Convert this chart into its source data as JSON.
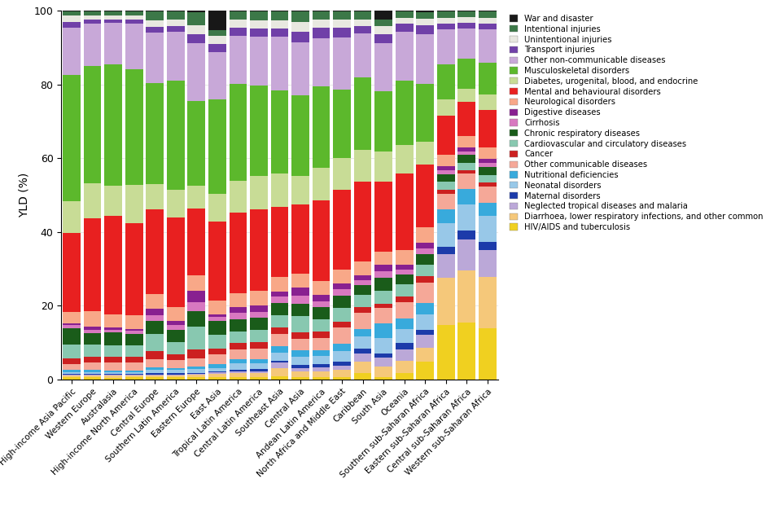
{
  "categories": [
    "High-income Asia Pacific",
    "Western Europe",
    "Australasia",
    "High-income North America",
    "Central Europe",
    "Southern Latin America",
    "Eastern Europe",
    "East Asia",
    "Tropical Latin America",
    "Central Latin America",
    "Southeast Asia",
    "Central Asia",
    "Andean Latin America",
    "North Africa and Middle East",
    "Caribbean",
    "South Asia",
    "Oceania",
    "Southern sub-Saharan Africa",
    "Eastern sub-Saharan Africa",
    "Central sub-Saharan Africa",
    "Western sub-Saharan Africa"
  ],
  "legend_labels": [
    "HIV/AIDS and tuberculosis",
    "Diarrhoea, lower respiratory infections, and other common infectious diseases",
    "Neglected tropical diseases and malaria",
    "Maternal disorders",
    "Neonatal disorders",
    "Nutritional deficiencies",
    "Other communicable diseases",
    "Cancer",
    "Cardiovascular and circulatory diseases",
    "Chronic respiratory diseases",
    "Cirrhosis",
    "Digestive diseases",
    "Neurological disorders",
    "Mental and behavioural disorders",
    "Diabetes, urogenital, blood, and endocrine",
    "Musculoskeletal disorders",
    "Other non-communicable diseases",
    "Transport injuries",
    "Unintentional injuries",
    "Intentional injuries",
    "War and disaster"
  ],
  "colors": [
    "#F0D020",
    "#F5C87A",
    "#BBA8D8",
    "#1C3BAA",
    "#98C8E8",
    "#38AADC",
    "#F5A898",
    "#CC2020",
    "#88C8B0",
    "#1A5C1A",
    "#D878C0",
    "#882090",
    "#F8A888",
    "#E82020",
    "#C8DC96",
    "#5CB82C",
    "#C8A8D8",
    "#7040A8",
    "#E8E8E0",
    "#3C7848",
    "#181818"
  ],
  "raw_data": {
    "HIV/AIDS and tuberculosis": [
      0.5,
      0.5,
      0.5,
      0.5,
      0.5,
      0.5,
      0.5,
      0.5,
      0.5,
      0.5,
      0.8,
      0.5,
      0.5,
      0.5,
      1.5,
      0.5,
      1.5,
      4.0,
      14.0,
      15.0,
      13.0
    ],
    "Diarrhoea, lower respiratory infections, and other common infectious diseases": [
      0.5,
      0.5,
      0.5,
      0.5,
      0.5,
      0.5,
      0.5,
      1.0,
      1.0,
      1.0,
      2.0,
      1.5,
      1.5,
      2.0,
      3.0,
      2.5,
      3.0,
      3.0,
      12.0,
      14.0,
      13.0
    ],
    "Neglected tropical diseases and malaria": [
      0.2,
      0.2,
      0.2,
      0.2,
      0.2,
      0.2,
      0.2,
      0.3,
      0.5,
      0.5,
      1.2,
      0.8,
      1.0,
      1.0,
      2.0,
      2.0,
      3.0,
      3.0,
      6.0,
      8.0,
      7.0
    ],
    "Maternal disorders": [
      0.2,
      0.2,
      0.2,
      0.2,
      0.3,
      0.3,
      0.3,
      0.2,
      0.5,
      0.5,
      0.5,
      0.8,
      0.8,
      1.0,
      1.2,
      1.0,
      1.5,
      1.0,
      2.0,
      2.5,
      2.0
    ],
    "Neonatal disorders": [
      0.5,
      0.5,
      0.5,
      0.5,
      0.8,
      0.8,
      0.8,
      0.8,
      1.5,
      1.5,
      2.0,
      2.0,
      2.0,
      2.5,
      3.0,
      3.5,
      3.5,
      3.5,
      6.0,
      7.0,
      6.5
    ],
    "Nutritional deficiencies": [
      0.5,
      0.5,
      0.5,
      0.5,
      0.5,
      0.5,
      0.5,
      1.0,
      1.0,
      1.0,
      1.5,
      1.5,
      1.5,
      2.0,
      2.0,
      3.5,
      2.5,
      2.5,
      3.5,
      4.0,
      3.5
    ],
    "Other communicable diseases": [
      1.5,
      2.0,
      2.0,
      2.0,
      2.0,
      2.0,
      2.0,
      2.5,
      2.5,
      2.5,
      3.0,
      3.0,
      3.0,
      4.0,
      4.0,
      3.5,
      4.0,
      4.5,
      4.0,
      4.0,
      4.0
    ],
    "Cancer": [
      1.5,
      1.5,
      1.5,
      1.5,
      2.0,
      1.5,
      2.0,
      1.5,
      1.5,
      1.5,
      1.5,
      1.5,
      1.5,
      1.5,
      1.5,
      1.0,
      1.5,
      1.5,
      1.0,
      1.0,
      1.0
    ],
    "Cardiovascular and circulatory diseases": [
      3.5,
      3.0,
      3.0,
      3.0,
      4.0,
      3.0,
      5.0,
      3.5,
      3.0,
      3.0,
      3.0,
      4.0,
      3.0,
      3.5,
      3.0,
      3.0,
      3.0,
      2.5,
      2.0,
      2.0,
      2.0
    ],
    "Chronic respiratory diseases": [
      4.0,
      3.0,
      3.5,
      3.0,
      3.0,
      3.0,
      3.5,
      3.5,
      3.0,
      3.0,
      3.0,
      3.0,
      3.0,
      3.0,
      2.5,
      3.0,
      2.5,
      2.5,
      2.0,
      2.0,
      2.0
    ],
    "Cirrhosis": [
      0.8,
      0.8,
      0.8,
      0.8,
      1.5,
      1.2,
      2.0,
      1.0,
      1.5,
      1.5,
      1.5,
      2.0,
      1.5,
      1.5,
      1.2,
      1.5,
      1.2,
      1.2,
      1.0,
      1.0,
      1.0
    ],
    "Digestive diseases": [
      0.5,
      0.8,
      0.5,
      0.5,
      1.5,
      1.0,
      2.5,
      0.8,
      1.5,
      1.5,
      1.2,
      2.0,
      1.5,
      1.5,
      1.2,
      1.5,
      1.2,
      1.2,
      1.0,
      1.0,
      1.0
    ],
    "Neurological disorders": [
      3.0,
      4.0,
      3.5,
      3.5,
      3.5,
      3.5,
      3.5,
      3.5,
      3.5,
      3.5,
      3.5,
      3.5,
      3.5,
      3.5,
      3.5,
      3.0,
      3.5,
      3.5,
      3.0,
      3.0,
      3.0
    ],
    "Mental and behavioural disorders": [
      20.0,
      24.0,
      26.0,
      24.0,
      20.0,
      22.0,
      15.0,
      20.0,
      20.0,
      20.0,
      17.0,
      17.0,
      20.0,
      20.0,
      20.0,
      16.0,
      19.0,
      14.0,
      10.0,
      9.0,
      9.5
    ],
    "Diabetes, urogenital, blood, and endocrine": [
      8.0,
      9.0,
      8.0,
      10.0,
      6.0,
      7.0,
      5.0,
      7.0,
      8.0,
      8.0,
      8.0,
      7.0,
      8.0,
      8.0,
      8.0,
      7.0,
      7.0,
      5.0,
      4.0,
      3.5,
      4.0
    ],
    "Musculoskeletal disorders": [
      32.0,
      30.0,
      32.0,
      30.0,
      24.0,
      27.0,
      19.0,
      24.0,
      24.0,
      22.0,
      20.0,
      20.0,
      20.0,
      17.0,
      18.0,
      14.0,
      16.0,
      13.0,
      9.0,
      8.0,
      8.0
    ],
    "Other non-communicable diseases": [
      12.0,
      11.0,
      11.0,
      12.0,
      12.0,
      12.0,
      13.0,
      12.0,
      12.0,
      12.0,
      13.0,
      13.0,
      12.0,
      13.0,
      11.0,
      11.0,
      12.0,
      11.0,
      9.0,
      8.0,
      8.5
    ],
    "Transport injuries": [
      1.5,
      1.0,
      1.0,
      1.0,
      1.5,
      1.5,
      2.0,
      2.0,
      2.0,
      2.0,
      2.0,
      2.5,
      2.5,
      2.5,
      2.0,
      2.0,
      2.0,
      2.0,
      1.5,
      1.5,
      1.5
    ],
    "Unintentional injuries": [
      1.5,
      1.0,
      1.0,
      1.0,
      1.5,
      1.5,
      2.0,
      2.0,
      2.0,
      2.0,
      2.0,
      2.5,
      2.0,
      2.0,
      1.5,
      2.0,
      1.5,
      1.5,
      1.5,
      1.5,
      1.5
    ],
    "Intentional injuries": [
      1.0,
      1.0,
      1.0,
      1.0,
      2.0,
      2.0,
      3.0,
      1.5,
      2.0,
      2.0,
      2.0,
      2.5,
      2.0,
      2.0,
      2.0,
      1.5,
      1.5,
      1.5,
      1.5,
      1.5,
      1.5
    ],
    "War and disaster": [
      0.3,
      0.3,
      0.3,
      0.3,
      0.3,
      0.3,
      0.3,
      5.0,
      0.3,
      0.3,
      0.3,
      0.3,
      0.3,
      0.3,
      0.3,
      2.0,
      0.3,
      0.3,
      0.3,
      0.3,
      0.3
    ]
  },
  "ylabel": "YLD (%)",
  "ylim": [
    0,
    100
  ],
  "background_color": "#FFFFFF"
}
